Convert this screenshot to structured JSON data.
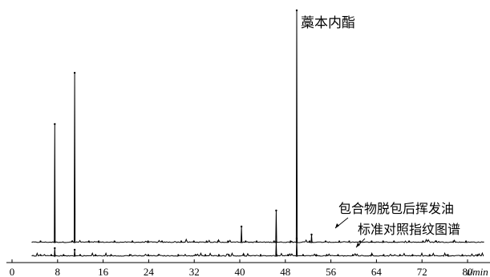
{
  "chart_data": {
    "type": "line",
    "title": "",
    "xlabel": "t/min",
    "ylabel": "",
    "xlim": [
      0,
      88
    ],
    "x_ticks": [
      0,
      8,
      16,
      24,
      32,
      40,
      48,
      56,
      64,
      72,
      80
    ],
    "annotations": {
      "peak_label": "藁本内酯",
      "series_top_label": "包合物脱包后挥发油",
      "series_bottom_label": "标准对照指纹图谱"
    },
    "series": [
      {
        "name": "包合物脱包后挥发油",
        "peaks": [
          {
            "x": 7.5,
            "h": 148
          },
          {
            "x": 11.0,
            "h": 212
          },
          {
            "x": 40.3,
            "h": 20
          },
          {
            "x": 46.4,
            "h": 40
          },
          {
            "x": 50.0,
            "h": 290
          },
          {
            "x": 52.6,
            "h": 10
          }
        ]
      },
      {
        "name": "标准对照指纹图谱",
        "peaks": [
          {
            "x": 7.5,
            "h": 10
          },
          {
            "x": 11.0,
            "h": 8
          },
          {
            "x": 46.4,
            "h": 18
          },
          {
            "x": 50.0,
            "h": 22
          }
        ]
      }
    ]
  }
}
